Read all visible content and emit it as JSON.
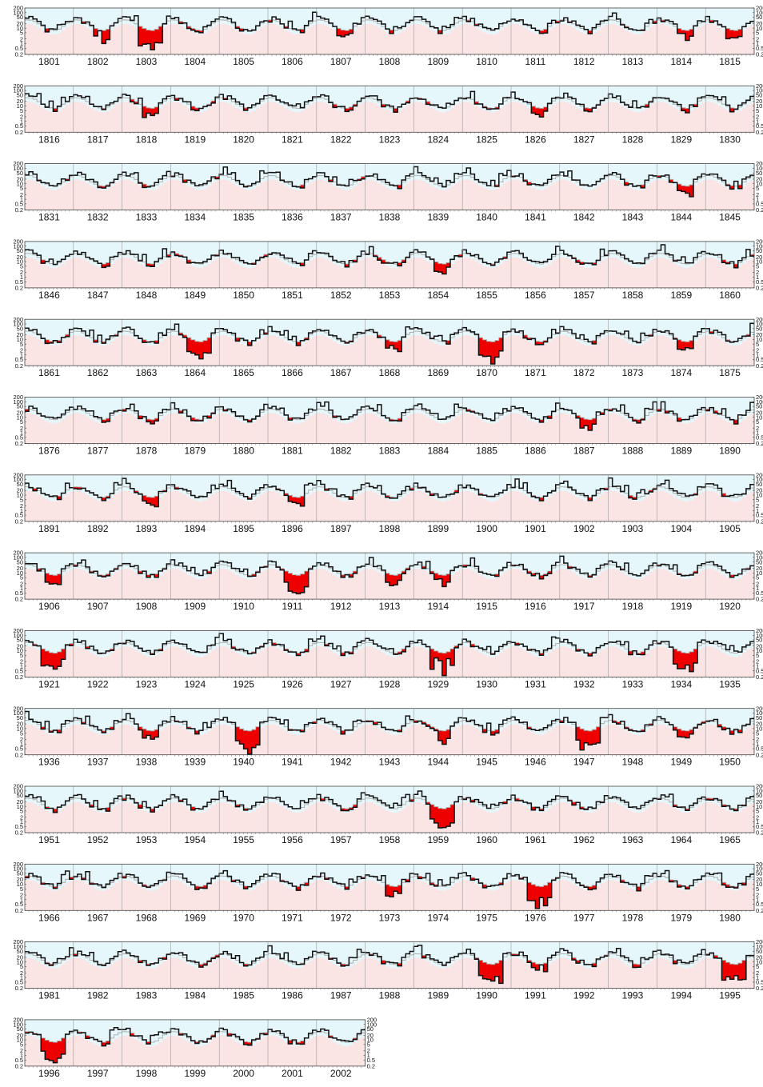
{
  "chart_data": {
    "type": "area",
    "title": "",
    "xlabel": "",
    "ylabel": "",
    "y_scale": "log",
    "ylim": [
      0.2,
      200
    ],
    "y_ticks": [
      "0.2",
      "0.5",
      "1",
      "2",
      "5",
      "10",
      "20",
      "50",
      "100",
      "200"
    ],
    "grid": "vertical lines at each year boundary",
    "years_per_row": 15,
    "first_year": 1801,
    "last_year": 2002,
    "background_colors": {
      "upper_band": "#e5f7fb",
      "lower_band": "#fbe4e4",
      "actual_line": "#111111",
      "reference_line": "#aaaaaa",
      "deficit_fill": "#ee0000"
    },
    "rows": [
      {
        "years": [
          "1801",
          "1802",
          "1803",
          "1804",
          "1805",
          "1806",
          "1807",
          "1808",
          "1809",
          "1810",
          "1811",
          "1812",
          "1813",
          "1814",
          "1815"
        ]
      },
      {
        "years": [
          "1816",
          "1817",
          "1818",
          "1819",
          "1820",
          "1821",
          "1822",
          "1823",
          "1824",
          "1825",
          "1826",
          "1827",
          "1828",
          "1829",
          "1830"
        ]
      },
      {
        "years": [
          "1831",
          "1832",
          "1833",
          "1834",
          "1835",
          "1836",
          "1837",
          "1838",
          "1839",
          "1840",
          "1841",
          "1842",
          "1843",
          "1844",
          "1845"
        ]
      },
      {
        "years": [
          "1846",
          "1847",
          "1848",
          "1849",
          "1850",
          "1851",
          "1852",
          "1853",
          "1854",
          "1855",
          "1856",
          "1857",
          "1858",
          "1859",
          "1860"
        ]
      },
      {
        "years": [
          "1861",
          "1862",
          "1863",
          "1864",
          "1865",
          "1866",
          "1867",
          "1868",
          "1869",
          "1870",
          "1871",
          "1872",
          "1873",
          "1874",
          "1875"
        ]
      },
      {
        "years": [
          "1876",
          "1877",
          "1878",
          "1879",
          "1880",
          "1881",
          "1882",
          "1883",
          "1884",
          "1885",
          "1886",
          "1887",
          "1888",
          "1889",
          "1890"
        ]
      },
      {
        "years": [
          "1891",
          "1892",
          "1893",
          "1894",
          "1895",
          "1896",
          "1897",
          "1898",
          "1899",
          "1900",
          "1901",
          "1902",
          "1903",
          "1904",
          "1905"
        ]
      },
      {
        "years": [
          "1906",
          "1907",
          "1908",
          "1909",
          "1910",
          "1911",
          "1912",
          "1913",
          "1914",
          "1915",
          "1916",
          "1917",
          "1918",
          "1919",
          "1920"
        ]
      },
      {
        "years": [
          "1921",
          "1922",
          "1923",
          "1924",
          "1925",
          "1926",
          "1927",
          "1928",
          "1929",
          "1930",
          "1931",
          "1932",
          "1933",
          "1934",
          "1935"
        ]
      },
      {
        "years": [
          "1936",
          "1937",
          "1938",
          "1939",
          "1940",
          "1941",
          "1942",
          "1943",
          "1944",
          "1945",
          "1946",
          "1947",
          "1948",
          "1949",
          "1950"
        ]
      },
      {
        "years": [
          "1951",
          "1952",
          "1953",
          "1954",
          "1955",
          "1956",
          "1957",
          "1958",
          "1959",
          "1960",
          "1961",
          "1962",
          "1963",
          "1964",
          "1965"
        ]
      },
      {
        "years": [
          "1966",
          "1967",
          "1968",
          "1969",
          "1970",
          "1971",
          "1972",
          "1973",
          "1974",
          "1975",
          "1976",
          "1977",
          "1978",
          "1979",
          "1980"
        ]
      },
      {
        "years": [
          "1981",
          "1982",
          "1983",
          "1984",
          "1985",
          "1986",
          "1987",
          "1988",
          "1989",
          "1990",
          "1991",
          "1992",
          "1993",
          "1994",
          "1995"
        ]
      },
      {
        "years": [
          "1996",
          "1997",
          "1998",
          "1999",
          "2000",
          "2001",
          "2002"
        ]
      }
    ],
    "deficit_years": {
      "severe": [
        "1803",
        "1921",
        "1976",
        "1990",
        "1934",
        "1929",
        "1864",
        "1870",
        "1911",
        "1959",
        "1995",
        "1996",
        "1947",
        "1940"
      ],
      "moderate": [
        "1802",
        "1807",
        "1814",
        "1815",
        "1818",
        "1826",
        "1844",
        "1854",
        "1868",
        "1874",
        "1887",
        "1893",
        "1896",
        "1906",
        "1913",
        "1914",
        "1938",
        "1944",
        "1949",
        "1973",
        "1991"
      ]
    }
  }
}
